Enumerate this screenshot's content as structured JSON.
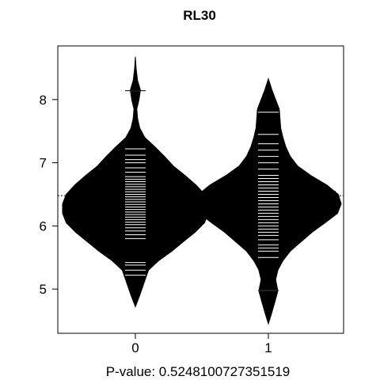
{
  "chart_data": {
    "type": "beanplot",
    "title": "RL30",
    "xlabel": "P-value: 0.5248100727351519",
    "ylabel": "",
    "categories": [
      "0",
      "1"
    ],
    "y_ticks": [
      "5",
      "6",
      "7",
      "8"
    ],
    "ylim": [
      4.3,
      8.85
    ],
    "overall_mean": 6.48,
    "grid": false,
    "beans": [
      {
        "category": "0",
        "mean": 6.47,
        "density": [
          [
            4.72,
            0.0
          ],
          [
            4.9,
            0.06
          ],
          [
            5.1,
            0.12
          ],
          [
            5.3,
            0.18
          ],
          [
            5.45,
            0.32
          ],
          [
            5.6,
            0.5
          ],
          [
            5.75,
            0.66
          ],
          [
            5.9,
            0.82
          ],
          [
            6.05,
            0.95
          ],
          [
            6.2,
            1.0
          ],
          [
            6.35,
            1.0
          ],
          [
            6.5,
            0.95
          ],
          [
            6.65,
            0.83
          ],
          [
            6.8,
            0.68
          ],
          [
            6.95,
            0.52
          ],
          [
            7.1,
            0.4
          ],
          [
            7.25,
            0.27
          ],
          [
            7.4,
            0.13
          ],
          [
            7.55,
            0.06
          ],
          [
            7.7,
            0.03
          ],
          [
            7.85,
            0.02
          ],
          [
            8.0,
            0.05
          ],
          [
            8.15,
            0.07
          ],
          [
            8.3,
            0.03
          ],
          [
            8.5,
            0.01
          ],
          [
            8.68,
            0.0
          ]
        ],
        "observations": [
          5.22,
          5.3,
          5.38,
          5.42,
          5.8,
          5.86,
          5.92,
          5.97,
          6.02,
          6.06,
          6.1,
          6.14,
          6.18,
          6.22,
          6.26,
          6.3,
          6.34,
          6.38,
          6.42,
          6.46,
          6.5,
          6.54,
          6.58,
          6.62,
          6.66,
          6.7,
          6.74,
          6.78,
          6.85,
          6.92,
          7.0,
          7.05,
          7.12,
          7.22,
          8.14
        ]
      },
      {
        "category": "1",
        "mean": 6.54,
        "density": [
          [
            4.45,
            0.0
          ],
          [
            4.6,
            0.04
          ],
          [
            4.8,
            0.09
          ],
          [
            4.97,
            0.13
          ],
          [
            5.15,
            0.1
          ],
          [
            5.3,
            0.13
          ],
          [
            5.45,
            0.2
          ],
          [
            5.6,
            0.3
          ],
          [
            5.75,
            0.45
          ],
          [
            5.9,
            0.6
          ],
          [
            6.05,
            0.78
          ],
          [
            6.2,
            0.95
          ],
          [
            6.35,
            1.0
          ],
          [
            6.5,
            0.96
          ],
          [
            6.65,
            0.8
          ],
          [
            6.8,
            0.58
          ],
          [
            6.95,
            0.4
          ],
          [
            7.1,
            0.3
          ],
          [
            7.25,
            0.24
          ],
          [
            7.4,
            0.2
          ],
          [
            7.55,
            0.17
          ],
          [
            7.7,
            0.16
          ],
          [
            7.85,
            0.15
          ],
          [
            8.0,
            0.1
          ],
          [
            8.15,
            0.05
          ],
          [
            8.33,
            0.0
          ]
        ],
        "observations": [
          4.98,
          5.5,
          5.6,
          5.65,
          5.7,
          5.78,
          5.85,
          5.9,
          5.95,
          6.0,
          6.05,
          6.1,
          6.15,
          6.2,
          6.25,
          6.3,
          6.35,
          6.4,
          6.45,
          6.5,
          6.55,
          6.6,
          6.65,
          6.7,
          6.75,
          6.8,
          6.9,
          7.0,
          7.1,
          7.2,
          7.3,
          7.45,
          7.8
        ]
      }
    ]
  }
}
